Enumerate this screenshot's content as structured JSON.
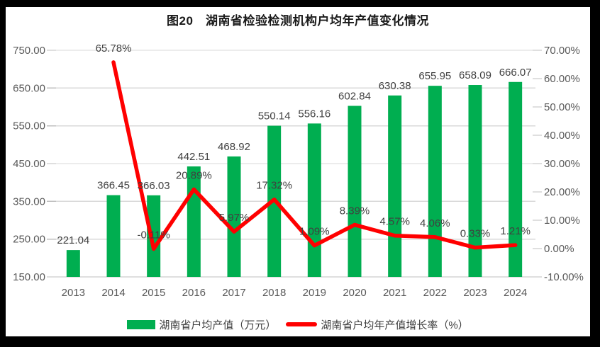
{
  "chart_data": {
    "type": "combo-bar-line",
    "title": "图20　湖南省检验检测机构户均年产值变化情况",
    "categories": [
      "2013",
      "2014",
      "2015",
      "2016",
      "2017",
      "2018",
      "2019",
      "2020",
      "2021",
      "2022",
      "2023",
      "2024"
    ],
    "series": [
      {
        "name": "湖南省户均产值（万元）",
        "type": "bar",
        "axis": "left",
        "color": "#00AE50",
        "values": [
          221.04,
          366.45,
          366.03,
          442.51,
          468.92,
          550.14,
          556.16,
          602.84,
          630.38,
          655.95,
          658.09,
          666.07
        ]
      },
      {
        "name": "湖南省户均年产值增长率（%）",
        "type": "line",
        "axis": "right",
        "color": "#FF0000",
        "values": [
          null,
          65.78,
          -0.11,
          20.89,
          5.97,
          17.32,
          1.09,
          8.39,
          4.57,
          4.06,
          0.33,
          1.21
        ]
      }
    ],
    "left_axis": {
      "min": 150,
      "max": 750,
      "step": 100,
      "suffix": "",
      "decimals": 2
    },
    "right_axis": {
      "min": -10,
      "max": 70,
      "step": 10,
      "suffix": "%",
      "decimals": 2
    },
    "grid": true,
    "legend_position": "bottom",
    "label_format": {
      "bar_suffix": "",
      "line_suffix": "%"
    }
  },
  "style_colors": {
    "gridline": "#D9D9D9",
    "axis_line": "#BFBFBF",
    "tick": "#BFBFBF",
    "axis_text": "#595959",
    "data_label_text": "#404040",
    "frame_background": "#000000",
    "canvas_background": "#FFFFFF"
  }
}
